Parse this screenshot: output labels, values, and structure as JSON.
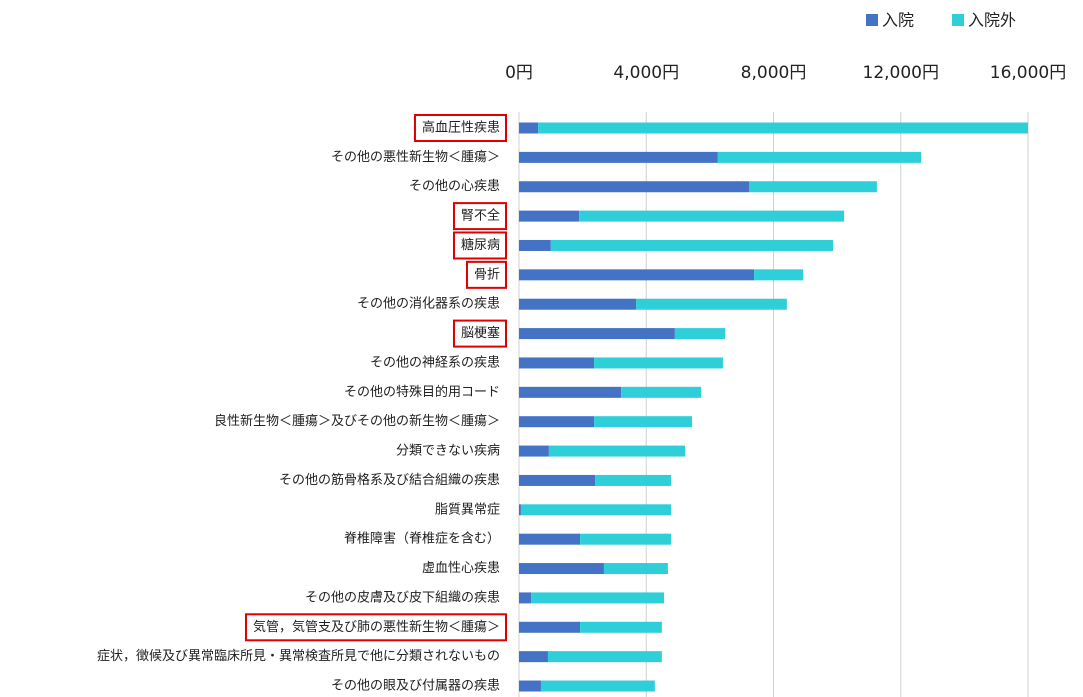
{
  "chart_data": {
    "type": "barh_stacked",
    "categories": [
      "高血圧性疾患",
      "その他の悪性新生物＜腫瘍＞",
      "その他の心疾患",
      "腎不全",
      "糖尿病",
      "骨折",
      "その他の消化器系の疾患",
      "脳梗塞",
      "その他の神経系の疾患",
      "その他の特殊目的用コード",
      "良性新生物＜腫瘍＞及びその他の新生物＜腫瘍＞",
      "分類できない疾病",
      "その他の筋骨格系及び結合組織の疾患",
      "脂質異常症",
      "脊椎障害（脊椎症を含む）",
      "虚血性心疾患",
      "その他の皮膚及び皮下組織の疾患",
      "気管，気管支及び肺の悪性新生物＜腫瘍＞",
      "症状，徴候及び異常臨床所見・異常検査所見で他に分類されないもの",
      "その他の眼及び付属器の疾患"
    ],
    "series": [
      {
        "name": "入院",
        "color": "#4472c4",
        "values": [
          600,
          6250,
          7230,
          1890,
          1000,
          7390,
          3680,
          4900,
          2360,
          3210,
          2360,
          940,
          2390,
          60,
          1920,
          2670,
          380,
          1920,
          910,
          690
        ]
      },
      {
        "name": "入院外",
        "color": "#2ecfd8",
        "values": [
          15400,
          6390,
          4020,
          8330,
          8870,
          1540,
          4740,
          1580,
          4050,
          2510,
          3080,
          4280,
          2390,
          4720,
          2860,
          2010,
          4180,
          2570,
          3580,
          3580
        ]
      }
    ],
    "xlim": [
      0,
      16000
    ],
    "xticks": [
      {
        "value": 0,
        "label": "0円"
      },
      {
        "value": 4000,
        "label": "4,000円"
      },
      {
        "value": 8000,
        "label": "8,000円"
      },
      {
        "value": 12000,
        "label": "12,000円"
      },
      {
        "value": 16000,
        "label": "16,000円"
      }
    ],
    "grid": true,
    "legend": "top-right",
    "highlight": [
      true,
      false,
      false,
      true,
      true,
      true,
      false,
      true,
      false,
      false,
      false,
      false,
      false,
      false,
      false,
      false,
      false,
      true,
      false,
      false
    ],
    "highlight_color": "#e00000"
  }
}
